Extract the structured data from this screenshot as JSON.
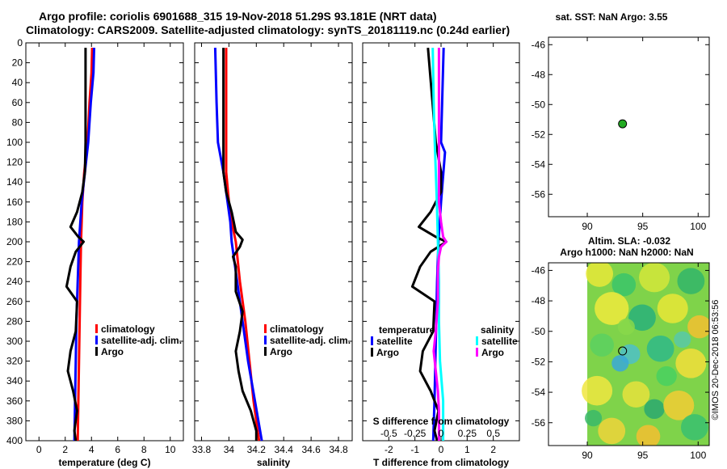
{
  "header": {
    "title_line1": "Argo profile: coriolis 6901688_315 19-Nov-2018 51.29S 93.181E (NRT data)",
    "title_line2": "Climatology: CARS2009. Satellite-adjusted climatology: synTS_20181119.nc (0.24d earlier)",
    "sst_title": "sat. SST: NaN Argo: 3.55",
    "sla_title_1": "Altim. SLA: -0.032",
    "sla_title_2": "Argo h1000: NaN h2000: NaN",
    "credit": "©IMOS 20-Dec-2018 06:53:56"
  },
  "colors": {
    "climatology": "#ff0000",
    "satellite": "#0000ff",
    "argo": "#000000",
    "sat_salinity": "#00ffff",
    "argo_salinity": "#ff00ff",
    "marker": "#22aa22"
  },
  "chart_data": [
    {
      "type": "line",
      "id": "temperature",
      "xlabel": "temperature (deg C)",
      "xlim": [
        -1,
        11
      ],
      "ylim": [
        400,
        0
      ],
      "x_ticks": [
        0,
        2,
        4,
        6,
        8,
        10
      ],
      "x_ticklabels": [
        "0",
        "2",
        "4",
        "6",
        "8",
        "10"
      ],
      "y_ticks": [
        0,
        20,
        40,
        60,
        80,
        100,
        120,
        140,
        160,
        180,
        200,
        220,
        240,
        260,
        280,
        300,
        320,
        340,
        360,
        380,
        400
      ],
      "y_ticklabels": [
        "0",
        "20",
        "40",
        "60",
        "80",
        "100",
        "120",
        "140",
        "160",
        "180",
        "200",
        "220",
        "240",
        "260",
        "280",
        "300",
        "320",
        "340",
        "360",
        "380",
        "400"
      ],
      "legend": [
        "climatology",
        "satellite-adj. clim.",
        "Argo"
      ],
      "series": [
        {
          "name": "climatology",
          "color": "#ff0000",
          "depth": [
            5,
            30,
            60,
            100,
            130,
            160,
            200,
            240,
            280,
            320,
            360,
            400
          ],
          "values": [
            4.05,
            4.0,
            3.85,
            3.7,
            3.45,
            3.3,
            3.2,
            3.15,
            3.1,
            3.05,
            3.0,
            2.95
          ]
        },
        {
          "name": "satellite-adj. clim.",
          "color": "#0000ff",
          "depth": [
            5,
            30,
            60,
            100,
            130,
            160,
            200,
            240,
            280,
            320,
            360,
            400
          ],
          "values": [
            4.2,
            4.15,
            3.95,
            3.75,
            3.5,
            3.25,
            3.05,
            2.95,
            2.85,
            2.8,
            2.75,
            2.7
          ]
        },
        {
          "name": "Argo",
          "color": "#000000",
          "depth": [
            5,
            100,
            130,
            150,
            170,
            185,
            195,
            200,
            210,
            225,
            245,
            260,
            290,
            310,
            330,
            350,
            370,
            390,
            400
          ],
          "values": [
            3.55,
            3.55,
            3.5,
            3.3,
            2.9,
            2.4,
            3.0,
            3.4,
            2.8,
            2.4,
            2.1,
            2.9,
            2.8,
            2.4,
            2.2,
            2.6,
            2.9,
            2.7,
            2.8
          ]
        }
      ]
    },
    {
      "type": "line",
      "id": "salinity",
      "xlabel": "salinity",
      "xlim": [
        33.75,
        34.9
      ],
      "ylim": [
        400,
        0
      ],
      "x_ticks": [
        33.8,
        34,
        34.2,
        34.4,
        34.6,
        34.8
      ],
      "x_ticklabels": [
        "33.8",
        "34",
        "34.2",
        "34.4",
        "34.6",
        "34.8"
      ],
      "legend": [
        "climatology",
        "satellite-adj. clim.",
        "Argo"
      ],
      "series": [
        {
          "name": "climatology",
          "color": "#ff0000",
          "depth": [
            5,
            100,
            130,
            160,
            180,
            200,
            240,
            280,
            320,
            360,
            400
          ],
          "values": [
            33.98,
            33.98,
            33.98,
            34.0,
            34.02,
            34.05,
            34.08,
            34.12,
            34.15,
            34.18,
            34.22
          ]
        },
        {
          "name": "satellite-adj. clim.",
          "color": "#0000ff",
          "depth": [
            5,
            60,
            100,
            130,
            160,
            180,
            200,
            220,
            240,
            280,
            320,
            360,
            400
          ],
          "values": [
            33.9,
            33.91,
            33.92,
            33.96,
            33.99,
            34.01,
            34.02,
            34.04,
            34.06,
            34.1,
            34.14,
            34.19,
            34.24
          ]
        },
        {
          "name": "Argo",
          "color": "#000000",
          "depth": [
            5,
            130,
            150,
            170,
            190,
            198,
            205,
            215,
            225,
            250,
            270,
            290,
            310,
            330,
            350,
            370,
            390,
            400
          ],
          "values": [
            33.96,
            33.96,
            33.98,
            34.02,
            34.05,
            34.1,
            34.08,
            34.03,
            34.05,
            34.05,
            34.1,
            34.08,
            34.05,
            34.07,
            34.1,
            34.16,
            34.2,
            34.2
          ]
        }
      ]
    },
    {
      "type": "line",
      "id": "difference",
      "xlabel": "T difference from climatology",
      "x2label": "S difference from climatology",
      "xlim": [
        -3,
        3
      ],
      "ylim": [
        400,
        0
      ],
      "x_ticks": [
        -2,
        -1,
        0,
        1,
        2
      ],
      "x_ticklabels": [
        "-2",
        "-1",
        "0",
        "1",
        "2"
      ],
      "s_ticks": [
        -0.5,
        -0.25,
        0,
        0.25,
        0.5
      ],
      "s_ticklabels": [
        "-0.5",
        "-0.25",
        "0",
        "0.25",
        "0.5"
      ],
      "legend_temperature_title": "temperature",
      "legend_salinity_title": "salinity",
      "legend": [
        "satellite",
        "Argo",
        "satellite",
        "Argo"
      ],
      "series": [
        {
          "name": "T satellite",
          "color": "#0000ff",
          "depth": [
            5,
            100,
            110,
            160,
            200,
            240,
            300,
            360,
            400
          ],
          "values": [
            0.1,
            0.0,
            0.15,
            0.0,
            -0.1,
            -0.15,
            -0.2,
            -0.25,
            -0.3
          ]
        },
        {
          "name": "T Argo",
          "color": "#000000",
          "depth": [
            5,
            100,
            130,
            150,
            170,
            185,
            195,
            200,
            210,
            225,
            245,
            260,
            290,
            310,
            330,
            350,
            370,
            390,
            400
          ],
          "values": [
            -0.5,
            -0.2,
            0.0,
            0.0,
            -0.4,
            -0.85,
            -0.2,
            0.2,
            -0.4,
            -0.8,
            -1.1,
            -0.25,
            -0.3,
            -0.7,
            -0.8,
            -0.4,
            -0.1,
            -0.25,
            -0.15
          ]
        },
        {
          "name": "S satellite",
          "color": "#00ffff",
          "depth": [
            5,
            60,
            100,
            160,
            200,
            240,
            280,
            320,
            360,
            400
          ],
          "values": [
            -0.08,
            -0.07,
            -0.06,
            -0.04,
            -0.03,
            -0.02,
            -0.02,
            -0.01,
            0.02,
            0.02
          ]
        },
        {
          "name": "S Argo",
          "color": "#ff00ff",
          "depth": [
            5,
            60,
            100,
            130,
            160,
            180,
            195,
            200,
            205,
            215,
            230,
            260,
            290,
            310,
            330,
            350,
            370,
            390,
            400
          ],
          "values": [
            -0.02,
            -0.02,
            -0.02,
            -0.02,
            -0.02,
            0.0,
            0.02,
            0.05,
            0.0,
            -0.02,
            -0.03,
            -0.03,
            -0.05,
            -0.07,
            -0.05,
            -0.03,
            -0.02,
            -0.02,
            -0.02
          ]
        }
      ]
    },
    {
      "type": "scatter",
      "id": "sst_map",
      "title": "sat. SST: NaN Argo: 3.55",
      "xlim": [
        86.5,
        101
      ],
      "ylim": [
        -57.5,
        -45.5
      ],
      "x_ticks": [
        90,
        95,
        100
      ],
      "x_ticklabels": [
        "90",
        "95",
        "100"
      ],
      "y_ticks": [
        -46,
        -48,
        -50,
        -52,
        -54,
        -56
      ],
      "y_ticklabels": [
        "-46",
        "-48",
        "-50",
        "-52",
        "-54",
        "-56"
      ],
      "points": [
        {
          "lon": 93.181,
          "lat": -51.29
        }
      ]
    },
    {
      "type": "heatmap",
      "id": "sla_map",
      "title": "Altim. SLA: -0.032",
      "xlim": [
        86.5,
        101
      ],
      "ylim": [
        -57.5,
        -45.5
      ],
      "data_lon_range": [
        90,
        101
      ],
      "x_ticks": [
        90,
        95,
        100
      ],
      "x_ticklabels": [
        "90",
        "95",
        "100"
      ],
      "y_ticks": [
        -46,
        -48,
        -50,
        -52,
        -54,
        -56
      ],
      "y_ticklabels": [
        "-46",
        "-48",
        "-50",
        "-52",
        "-54",
        "-56"
      ],
      "points": [
        {
          "lon": 93.181,
          "lat": -51.29
        }
      ]
    }
  ]
}
